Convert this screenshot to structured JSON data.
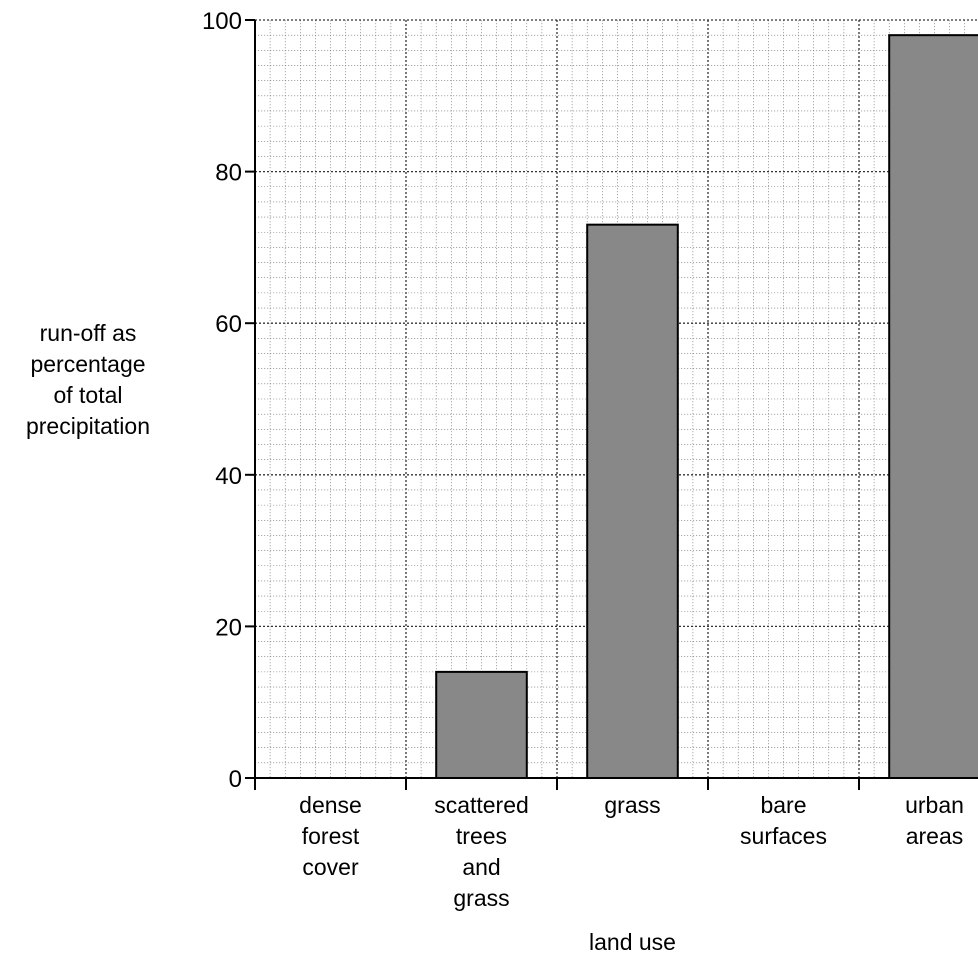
{
  "chart_data": {
    "type": "bar",
    "categories": [
      [
        "dense",
        "forest",
        "cover"
      ],
      [
        "scattered",
        "trees",
        "and",
        "grass"
      ],
      [
        "grass"
      ],
      [
        "bare",
        "surfaces"
      ],
      [
        "urban",
        "areas"
      ]
    ],
    "values": [
      0,
      14,
      73,
      0,
      98
    ],
    "xlabel": "land use",
    "ylabel_lines": [
      "run-off as",
      "percentage",
      "of total",
      "precipitation"
    ],
    "ylim": [
      0,
      100
    ],
    "yticks": [
      0,
      20,
      40,
      60,
      80,
      100
    ],
    "grid": true,
    "bar_color": "#888888"
  }
}
